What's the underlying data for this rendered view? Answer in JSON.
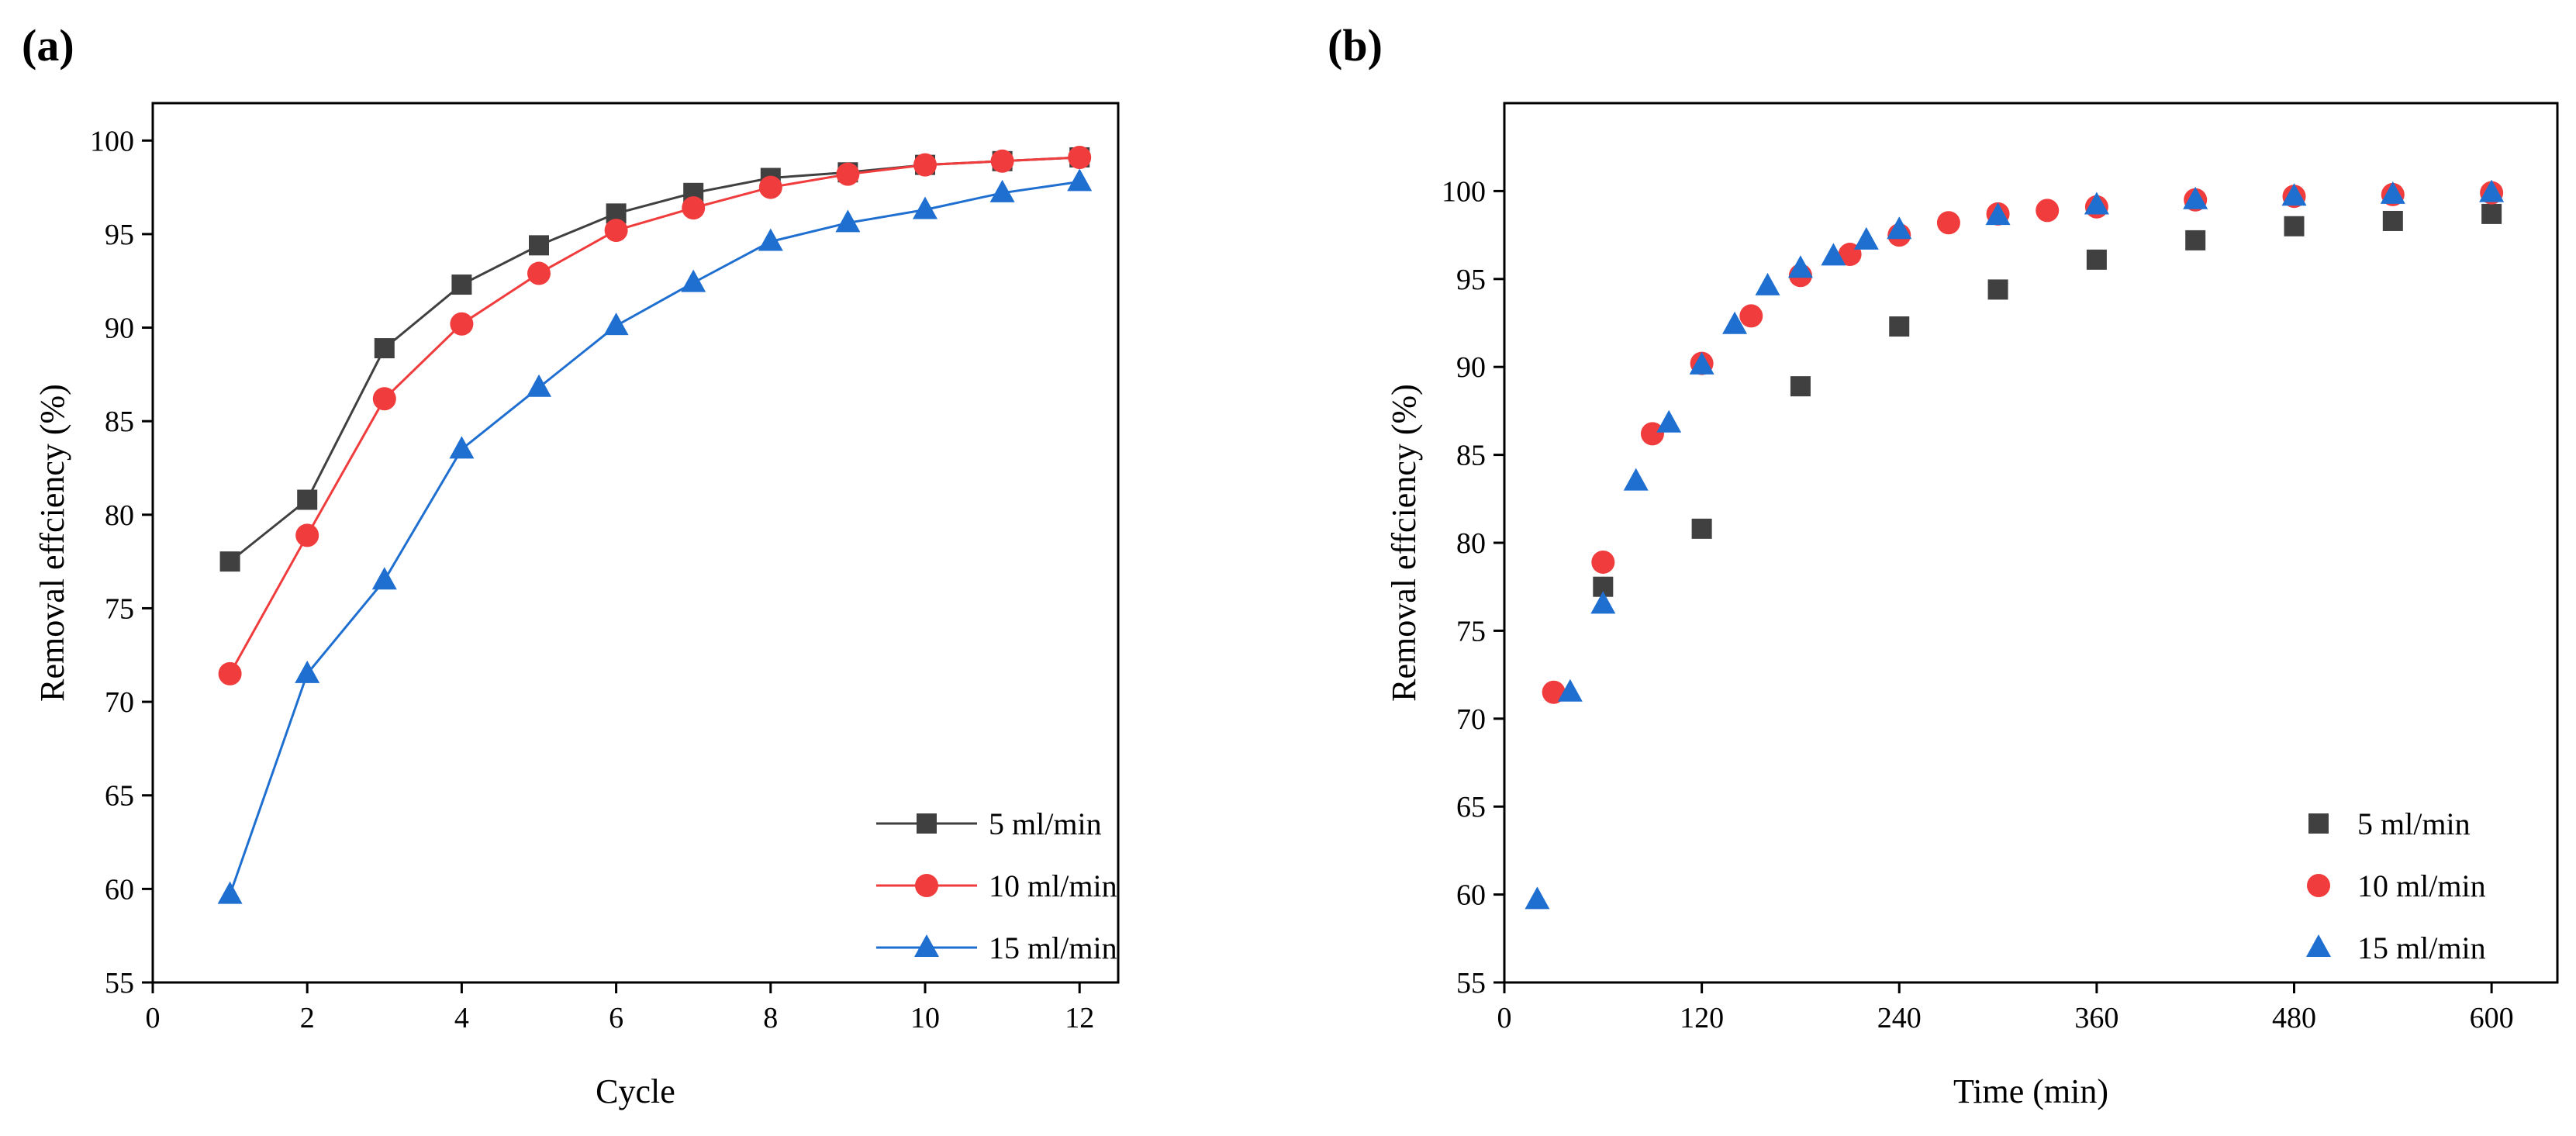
{
  "chart_data": [
    {
      "panel_label": "(a)",
      "type": "line",
      "title": "",
      "xlabel": "Cycle",
      "ylabel": "Removal effciency (%)",
      "xlim": [
        0,
        12.5
      ],
      "ylim": [
        55,
        102
      ],
      "xticks": [
        0,
        2,
        4,
        6,
        8,
        10,
        12
      ],
      "yticks": [
        55,
        60,
        65,
        70,
        75,
        80,
        85,
        90,
        95,
        100
      ],
      "legend_position": "bottom-right",
      "series": [
        {
          "name": "5 ml/min",
          "color": "#404040",
          "marker": "square",
          "x": [
            1,
            2,
            3,
            4,
            5,
            6,
            7,
            8,
            9,
            10,
            11,
            12
          ],
          "y": [
            77.5,
            80.8,
            88.9,
            92.3,
            94.4,
            96.1,
            97.2,
            98.0,
            98.3,
            98.7,
            98.9,
            99.1
          ]
        },
        {
          "name": "10 ml/min",
          "color": "#f03c3c",
          "marker": "circle",
          "x": [
            1,
            2,
            3,
            4,
            5,
            6,
            7,
            8,
            9,
            10,
            11,
            12
          ],
          "y": [
            71.5,
            78.9,
            86.2,
            90.2,
            92.9,
            95.2,
            96.4,
            97.5,
            98.2,
            98.7,
            98.9,
            99.1
          ]
        },
        {
          "name": "15 ml/min",
          "color": "#1f6fd1",
          "marker": "triangle",
          "x": [
            1,
            2,
            3,
            4,
            5,
            6,
            7,
            8,
            9,
            10,
            11,
            12
          ],
          "y": [
            59.7,
            71.5,
            76.5,
            83.5,
            86.8,
            90.1,
            92.4,
            94.6,
            95.6,
            96.3,
            97.2,
            97.8
          ]
        }
      ]
    },
    {
      "panel_label": "(b)",
      "type": "scatter",
      "title": "",
      "xlabel": "Time (min)",
      "ylabel": "Removal effciency (%)",
      "xlim": [
        0,
        640
      ],
      "ylim": [
        55,
        105
      ],
      "xticks": [
        0,
        120,
        240,
        360,
        480,
        600
      ],
      "yticks": [
        55,
        60,
        65,
        70,
        75,
        80,
        85,
        90,
        95,
        100
      ],
      "legend_position": "bottom-right",
      "series": [
        {
          "name": "5 ml/min",
          "color": "#404040",
          "marker": "square",
          "x": [
            60,
            120,
            180,
            240,
            300,
            360,
            420,
            480,
            540,
            600
          ],
          "y": [
            77.5,
            80.8,
            88.9,
            92.3,
            94.4,
            96.1,
            97.2,
            98.0,
            98.3,
            98.7
          ]
        },
        {
          "name": "10 ml/min",
          "color": "#f03c3c",
          "marker": "circle",
          "x": [
            30,
            60,
            90,
            120,
            150,
            180,
            210,
            240,
            270,
            300,
            330,
            360,
            420,
            480,
            540,
            600
          ],
          "y": [
            71.5,
            78.9,
            86.2,
            90.2,
            92.9,
            95.2,
            96.4,
            97.5,
            98.2,
            98.7,
            98.9,
            99.1,
            99.5,
            99.7,
            99.8,
            99.9
          ]
        },
        {
          "name": "15 ml/min",
          "color": "#1f6fd1",
          "marker": "triangle",
          "x": [
            20,
            40,
            60,
            80,
            100,
            120,
            140,
            160,
            180,
            200,
            220,
            240,
            300,
            360,
            420,
            480,
            540,
            600
          ],
          "y": [
            59.7,
            71.5,
            76.5,
            83.5,
            86.8,
            90.1,
            92.4,
            94.6,
            95.6,
            96.3,
            97.2,
            97.8,
            98.6,
            99.2,
            99.5,
            99.7,
            99.8,
            99.9
          ]
        }
      ]
    }
  ]
}
